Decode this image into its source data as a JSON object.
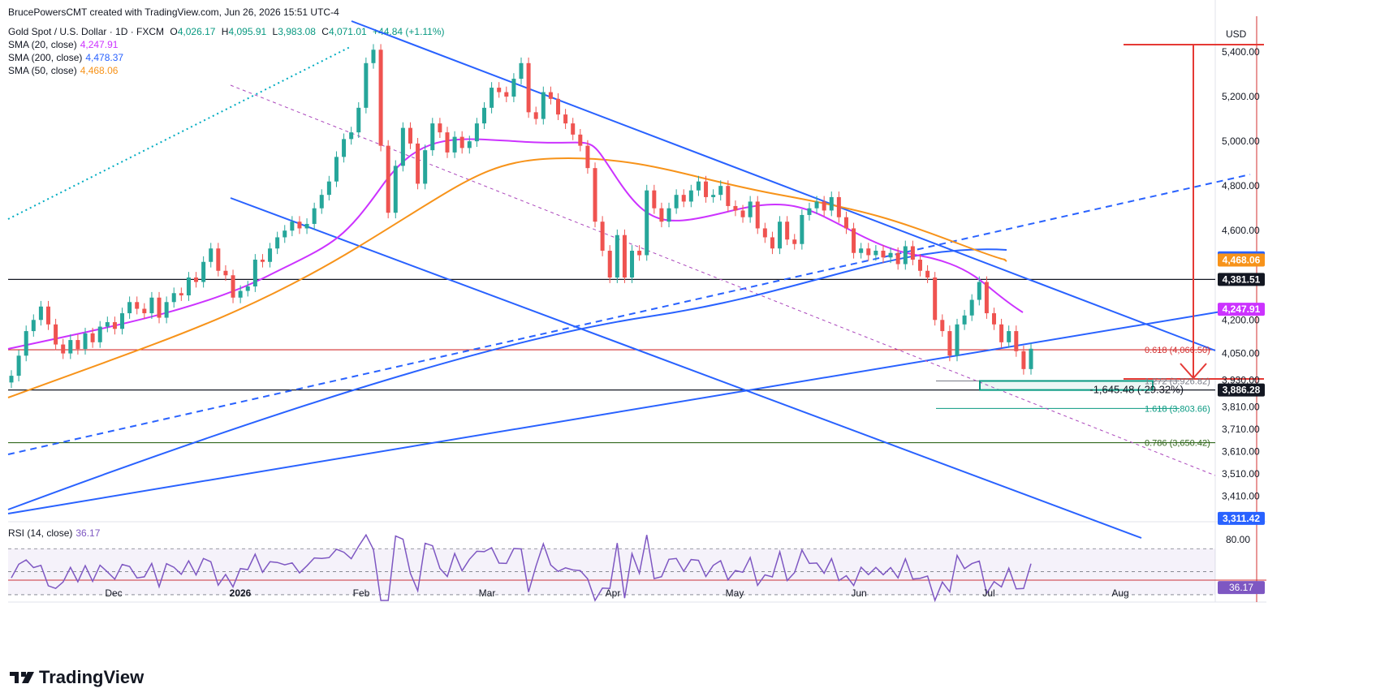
{
  "credit": "BrucePowersCMT created with TradingView.com, Jun 26, 2026 15:51 UTC-4",
  "header": {
    "symbol": "Gold Spot / U.S. Dollar · 1D · FXCM",
    "o_label": "O",
    "o": "4,026.17",
    "h_label": "H",
    "h": "4,095.91",
    "l_label": "L",
    "l": "3,983.08",
    "c_label": "C",
    "c": "4,071.01",
    "change": "+44.84 (+1.11%)"
  },
  "indicators": [
    {
      "label": "SMA (20, close)",
      "value": "4,247.91",
      "color": "#cc33ff"
    },
    {
      "label": "SMA (200, close)",
      "value": "4,478.37",
      "color": "#2962ff"
    },
    {
      "label": "SMA (50, close)",
      "value": "4,468.06",
      "color": "#f7931a"
    }
  ],
  "currency": "USD",
  "rsi": {
    "label": "RSI (14, close)",
    "value": "36.17",
    "color": "#7e57c2",
    "levels": [
      "80.00"
    ],
    "badge": "36.17"
  },
  "brand": "TradingView",
  "colors": {
    "up": "#26a69a",
    "down": "#ef5350",
    "sma20": "#cc33ff",
    "sma50": "#f7931a",
    "sma200": "#2962ff",
    "trend": "#2962ff",
    "fib_red": "#d32f2f",
    "measure": "#e53935"
  },
  "fib_labels": [
    {
      "text": "0.618 (4,066.50)",
      "color": "#d32f2f"
    },
    {
      "text": "1.272 (3,926.82)",
      "color": "#787b86"
    },
    {
      "text": "1.618 (3,803.66)",
      "color": "#089981"
    },
    {
      "text": "0.786 (3,650.42)",
      "color": "#33691e"
    }
  ],
  "measure_label": "-1,645.48 (-29.32%)",
  "chart_data": {
    "type": "candlestick",
    "timeframe": "1D",
    "x_ticks": [
      "Dec",
      "2026",
      "Feb",
      "Mar",
      "Apr",
      "May",
      "Jun",
      "Jul",
      "Aug"
    ],
    "y_ticks": [
      "5,400.00",
      "5,200.00",
      "5,000.00",
      "4,800.00",
      "4,600.00",
      "4,200.00",
      "4,050.00",
      "3,930.00",
      "3,810.00",
      "3,710.00",
      "3,610.00",
      "3,510.00",
      "3,410.00"
    ],
    "ylim": [
      3300,
      5560
    ],
    "price_badges": [
      {
        "value": "4,478.37",
        "color": "#2962ff"
      },
      {
        "value": "4,468.06",
        "color": "#f7931a"
      },
      {
        "value": "4,381.51",
        "color": "#131722"
      },
      {
        "value": "4,247.91",
        "color": "#cc33ff"
      },
      {
        "value": "3,886.28",
        "color": "#131722"
      },
      {
        "value": "3,311.42",
        "color": "#2962ff"
      }
    ],
    "horizontal_levels": [
      4381.51,
      4066.5,
      3886.28,
      3650.42
    ],
    "closes": [
      3950,
      4040,
      4150,
      4200,
      4260,
      4180,
      4090,
      4050,
      4110,
      4070,
      4140,
      4100,
      4170,
      4190,
      4160,
      4230,
      4280,
      4250,
      4230,
      4300,
      4210,
      4280,
      4320,
      4310,
      4390,
      4370,
      4460,
      4520,
      4420,
      4400,
      4300,
      4330,
      4350,
      4470,
      4460,
      4520,
      4570,
      4600,
      4640,
      4610,
      4630,
      4700,
      4760,
      4820,
      4930,
      5010,
      5040,
      5150,
      5350,
      5410,
      4980,
      4680,
      4890,
      5060,
      4990,
      4810,
      4960,
      5080,
      5040,
      4950,
      5020,
      4970,
      5000,
      5080,
      5150,
      5240,
      5220,
      5200,
      5280,
      5350,
      5130,
      5100,
      5220,
      5190,
      5120,
      5080,
      5030,
      4980,
      4880,
      4640,
      4510,
      4390,
      4580,
      4390,
      4510,
      4490,
      4780,
      4700,
      4640,
      4700,
      4760,
      4730,
      4780,
      4820,
      4750,
      4760,
      4800,
      4710,
      4690,
      4660,
      4730,
      4610,
      4570,
      4520,
      4640,
      4560,
      4540,
      4670,
      4700,
      4730,
      4690,
      4750,
      4660,
      4610,
      4500,
      4520,
      4490,
      4510,
      4480,
      4500,
      4450,
      4530,
      4470,
      4420,
      4390,
      4200,
      4150,
      4040,
      4180,
      4220,
      4290,
      4370,
      4230,
      4180,
      4100,
      4150,
      4060,
      3980,
      4071
    ]
  }
}
